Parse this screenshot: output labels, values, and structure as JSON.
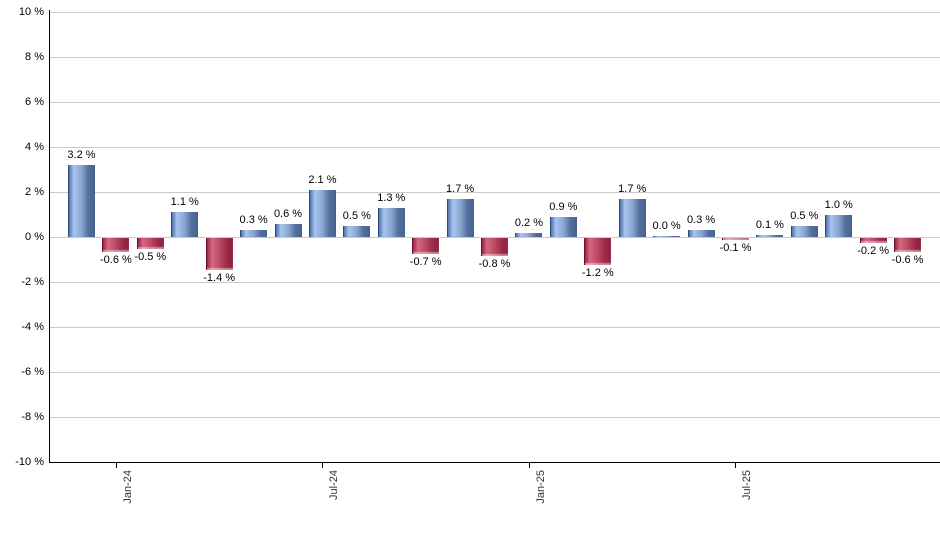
{
  "chart_data": {
    "type": "bar",
    "title": "",
    "xlabel": "",
    "ylabel": "",
    "unit": "%",
    "ylim": [
      -10,
      10
    ],
    "ytick_step": 2,
    "grid": true,
    "legend": null,
    "y_tick_labels": [
      "10 %",
      "8 %",
      "6 %",
      "4 %",
      "2 %",
      "0 %",
      "-2 %",
      "-4 %",
      "-6 %",
      "-8 %",
      "-10 %"
    ],
    "x_tick_labels": [
      "Jan-24",
      "Jul-24",
      "Jan-25",
      "Jul-25"
    ],
    "x_tick_bar_indices": [
      1,
      7,
      13,
      19
    ],
    "values": [
      3.2,
      -0.6,
      -0.5,
      1.1,
      -1.4,
      0.3,
      0.6,
      2.1,
      0.5,
      1.3,
      -0.7,
      1.7,
      -0.8,
      0.2,
      0.9,
      -1.2,
      1.7,
      0.0,
      0.3,
      -0.1,
      0.1,
      0.5,
      1.0,
      -0.2,
      -0.6
    ],
    "value_labels": [
      "3.2 %",
      "-0.6 %",
      "-0.5 %",
      "1.1 %",
      "-1.4 %",
      "0.3 %",
      "0.6 %",
      "2.1 %",
      "0.5 %",
      "1.3 %",
      "-0.7 %",
      "1.7 %",
      "-0.8 %",
      "0.2 %",
      "0.9 %",
      "-1.2 %",
      "1.7 %",
      "0.0 %",
      "0.3 %",
      "-0.1 %",
      "0.1 %",
      "0.5 %",
      "1.0 %",
      "-0.2 %",
      "-0.6 %"
    ],
    "colors": {
      "positive_bar": "#6f8fc0",
      "positive_highlight": "#a6c4ef",
      "positive_edge": "#2d4a77",
      "negative_bar": "#b03a58",
      "negative_highlight": "#d46880",
      "negative_edge": "#6d0f2b",
      "gridline": "#c9c9c9",
      "axis": "#000000",
      "value_label": "#000000",
      "tick_label": "#333333",
      "background": "#ffffff"
    }
  }
}
